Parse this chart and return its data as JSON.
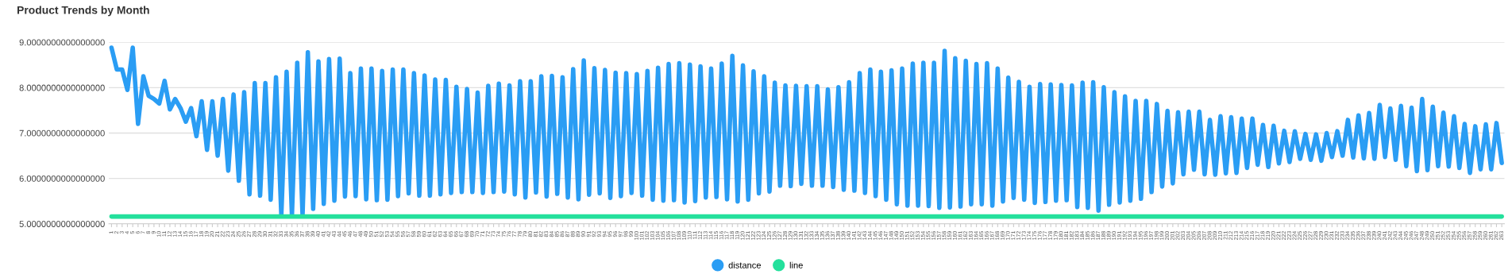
{
  "chart_data": {
    "type": "line",
    "title": "Product Trends by Month",
    "categories": [
      "1",
      "2",
      "3",
      "4",
      "5",
      "6",
      "7",
      "8",
      "9",
      "10",
      "11",
      "12",
      "13",
      "14",
      "15",
      "16",
      "17",
      "18",
      "19",
      "20",
      "21",
      "22",
      "23",
      "24",
      "25",
      "26",
      "27",
      "28",
      "29",
      "30",
      "31",
      "32",
      "33",
      "34",
      "35",
      "36",
      "37",
      "38",
      "39",
      "40",
      "41",
      "42",
      "43",
      "44",
      "45",
      "46",
      "47",
      "48",
      "49",
      "50",
      "51",
      "52",
      "53",
      "54",
      "55",
      "56",
      "57",
      "58",
      "59",
      "60",
      "61",
      "62",
      "63",
      "64",
      "65",
      "66",
      "67",
      "68",
      "69",
      "70",
      "71",
      "72",
      "73",
      "74",
      "75",
      "76",
      "77",
      "78",
      "79",
      "80",
      "81",
      "82",
      "83",
      "84",
      "85",
      "86",
      "87",
      "88",
      "89",
      "90",
      "91",
      "92",
      "93",
      "94",
      "95",
      "96",
      "97",
      "98",
      "99",
      "100",
      "101",
      "102",
      "103",
      "104",
      "105",
      "106",
      "107",
      "108",
      "109",
      "110",
      "111",
      "112",
      "113",
      "114",
      "115",
      "116",
      "117",
      "118",
      "119",
      "120",
      "121",
      "122",
      "123",
      "124",
      "125",
      "126",
      "127",
      "128",
      "129",
      "130",
      "131",
      "132",
      "133",
      "134",
      "135",
      "136",
      "137",
      "138",
      "139",
      "140",
      "141",
      "142",
      "143",
      "144",
      "145",
      "146",
      "147",
      "148",
      "149",
      "150",
      "151",
      "152",
      "153",
      "154",
      "155",
      "156",
      "157",
      "158",
      "159",
      "160",
      "161",
      "162",
      "163",
      "164",
      "165",
      "166",
      "167",
      "168",
      "169",
      "170",
      "171",
      "172",
      "173",
      "174",
      "175",
      "176",
      "177",
      "178",
      "179",
      "180",
      "181",
      "182",
      "183",
      "184",
      "185",
      "186",
      "187",
      "188",
      "189",
      "190",
      "191",
      "192",
      "193",
      "194",
      "195",
      "196",
      "197",
      "198",
      "199",
      "200",
      "201",
      "202",
      "203",
      "204",
      "205",
      "206",
      "207",
      "208",
      "209",
      "210",
      "211",
      "212",
      "213",
      "214",
      "215",
      "216",
      "217",
      "218",
      "219",
      "220",
      "221",
      "222",
      "223",
      "224",
      "225",
      "226",
      "227",
      "228",
      "229",
      "230",
      "231",
      "232",
      "233",
      "234",
      "235",
      "236",
      "237",
      "238",
      "239",
      "240",
      "241",
      "242",
      "243",
      "244",
      "245",
      "246",
      "247",
      "248",
      "249",
      "250",
      "251",
      "252",
      "253",
      "254",
      "255",
      "256",
      "257",
      "258",
      "259",
      "260",
      "261",
      "262",
      "263"
    ],
    "series": [
      {
        "name": "distance",
        "color": "#2a9df4",
        "values": [
          8.88,
          8.4,
          8.4,
          7.95,
          8.88,
          7.2,
          8.25,
          7.82,
          7.75,
          7.65,
          8.15,
          7.52,
          7.75,
          7.55,
          7.25,
          7.55,
          6.93,
          7.7,
          6.63,
          7.7,
          6.5,
          7.75,
          6.17,
          7.85,
          5.95,
          7.9,
          5.65,
          8.1,
          5.62,
          8.1,
          5.53,
          8.23,
          5.18,
          8.35,
          5.18,
          8.55,
          5.18,
          8.78,
          5.33,
          8.58,
          5.44,
          8.63,
          5.51,
          8.64,
          5.6,
          8.32,
          5.61,
          8.42,
          5.54,
          8.42,
          5.52,
          8.37,
          5.53,
          8.4,
          5.61,
          8.4,
          5.67,
          8.32,
          5.62,
          8.27,
          5.62,
          8.18,
          5.65,
          8.17,
          5.68,
          8.02,
          5.7,
          7.97,
          5.7,
          7.89,
          5.68,
          8.04,
          5.7,
          8.09,
          5.71,
          8.05,
          5.65,
          8.14,
          5.58,
          8.14,
          5.69,
          8.25,
          5.6,
          8.26,
          5.66,
          8.23,
          5.58,
          8.41,
          5.54,
          8.6,
          5.64,
          8.43,
          5.67,
          8.39,
          5.57,
          8.33,
          5.61,
          8.32,
          5.68,
          8.3,
          5.62,
          8.37,
          5.53,
          8.44,
          5.51,
          8.52,
          5.52,
          8.54,
          5.47,
          8.51,
          5.5,
          8.47,
          5.58,
          8.42,
          5.59,
          8.53,
          5.54,
          8.7,
          5.49,
          8.49,
          5.53,
          8.36,
          5.67,
          8.25,
          5.71,
          8.11,
          5.84,
          8.05,
          5.83,
          8.04,
          5.88,
          8.03,
          5.84,
          8.03,
          5.84,
          7.96,
          5.81,
          8.01,
          5.75,
          8.12,
          5.73,
          8.32,
          5.68,
          8.4,
          5.61,
          8.35,
          5.53,
          8.38,
          5.43,
          8.42,
          5.4,
          8.53,
          5.4,
          8.55,
          5.39,
          8.55,
          5.35,
          8.81,
          5.36,
          8.65,
          5.38,
          8.59,
          5.43,
          8.52,
          5.43,
          8.54,
          5.4,
          8.42,
          5.49,
          8.22,
          5.57,
          8.13,
          5.53,
          8.02,
          5.46,
          8.08,
          5.48,
          8.07,
          5.51,
          8.06,
          5.52,
          8.05,
          5.37,
          8.11,
          5.35,
          8.12,
          5.29,
          8.01,
          5.42,
          7.9,
          5.47,
          7.81,
          5.51,
          7.71,
          5.55,
          7.71,
          5.7,
          7.64,
          5.82,
          7.49,
          5.89,
          7.46,
          6.09,
          7.47,
          6.19,
          7.47,
          6.09,
          7.29,
          6.08,
          7.37,
          6.11,
          7.35,
          6.12,
          7.32,
          6.23,
          7.32,
          6.3,
          7.18,
          6.25,
          7.16,
          6.33,
          7.05,
          6.36,
          7.04,
          6.43,
          6.98,
          6.41,
          6.97,
          6.39,
          7.0,
          6.47,
          7.04,
          6.5,
          7.29,
          6.46,
          7.39,
          6.44,
          7.44,
          6.43,
          7.62,
          6.47,
          7.54,
          6.41,
          7.6,
          6.27,
          7.56,
          6.16,
          7.75,
          6.18,
          7.58,
          6.27,
          7.45,
          6.26,
          7.37,
          6.23,
          7.2,
          6.12,
          7.15,
          6.2,
          7.19,
          6.2,
          7.22,
          6.34
        ]
      },
      {
        "name": "line",
        "color": "#24e09c",
        "values": [
          5.16,
          5.16,
          5.16,
          5.16,
          5.16,
          5.16,
          5.16,
          5.16,
          5.16,
          5.16,
          5.16,
          5.16,
          5.16,
          5.16,
          5.16,
          5.16,
          5.16,
          5.16,
          5.16,
          5.16,
          5.16,
          5.16,
          5.16,
          5.16,
          5.16,
          5.16,
          5.16,
          5.16,
          5.16,
          5.16,
          5.16,
          5.16,
          5.16,
          5.16,
          5.16,
          5.16,
          5.16,
          5.16,
          5.16,
          5.16,
          5.16,
          5.16,
          5.16,
          5.16,
          5.16,
          5.16,
          5.16,
          5.16,
          5.16,
          5.16,
          5.16,
          5.16,
          5.16,
          5.16,
          5.16,
          5.16,
          5.16,
          5.16,
          5.16,
          5.16,
          5.16,
          5.16,
          5.16,
          5.16,
          5.16,
          5.16,
          5.16,
          5.16,
          5.16,
          5.16,
          5.16,
          5.16,
          5.16,
          5.16,
          5.16,
          5.16,
          5.16,
          5.16,
          5.16,
          5.16,
          5.16,
          5.16,
          5.16,
          5.16,
          5.16,
          5.16,
          5.16,
          5.16,
          5.16,
          5.16,
          5.16,
          5.16,
          5.16,
          5.16,
          5.16,
          5.16,
          5.16,
          5.16,
          5.16,
          5.16,
          5.16,
          5.16,
          5.16,
          5.16,
          5.16,
          5.16,
          5.16,
          5.16,
          5.16,
          5.16,
          5.16,
          5.16,
          5.16,
          5.16,
          5.16,
          5.16,
          5.16,
          5.16,
          5.16,
          5.16,
          5.16,
          5.16,
          5.16,
          5.16,
          5.16,
          5.16,
          5.16,
          5.16,
          5.16,
          5.16,
          5.16,
          5.16,
          5.16,
          5.16,
          5.16,
          5.16,
          5.16,
          5.16,
          5.16,
          5.16,
          5.16,
          5.16,
          5.16,
          5.16,
          5.16,
          5.16,
          5.16,
          5.16,
          5.16,
          5.16,
          5.16,
          5.16,
          5.16,
          5.16,
          5.16,
          5.16,
          5.16,
          5.16,
          5.16,
          5.16,
          5.16,
          5.16,
          5.16,
          5.16,
          5.16,
          5.16,
          5.16,
          5.16,
          5.16,
          5.16,
          5.16,
          5.16,
          5.16,
          5.16,
          5.16,
          5.16,
          5.16,
          5.16,
          5.16,
          5.16,
          5.16,
          5.16,
          5.16,
          5.16,
          5.16,
          5.16,
          5.16,
          5.16,
          5.16,
          5.16,
          5.16,
          5.16,
          5.16,
          5.16,
          5.16,
          5.16,
          5.16,
          5.16,
          5.16,
          5.16,
          5.16,
          5.16,
          5.16,
          5.16,
          5.16,
          5.16,
          5.16,
          5.16,
          5.16,
          5.16,
          5.16,
          5.16,
          5.16,
          5.16,
          5.16,
          5.16,
          5.16,
          5.16,
          5.16,
          5.16,
          5.16,
          5.16,
          5.16,
          5.16,
          5.16,
          5.16,
          5.16,
          5.16,
          5.16,
          5.16,
          5.16,
          5.16,
          5.16,
          5.16,
          5.16,
          5.16,
          5.16,
          5.16,
          5.16,
          5.16,
          5.16,
          5.16,
          5.16,
          5.16,
          5.16,
          5.16,
          5.16,
          5.16,
          5.16,
          5.16,
          5.16,
          5.16,
          5.16,
          5.16,
          5.16,
          5.16,
          5.16,
          5.16,
          5.16,
          5.16,
          5.16,
          5.16,
          5.16
        ]
      }
    ],
    "ylim": [
      5,
      9
    ],
    "yticks": [
      {
        "value": 5,
        "label": "5.0000000000000000"
      },
      {
        "value": 6,
        "label": "6.0000000000000000"
      },
      {
        "value": 7,
        "label": "7.0000000000000000"
      },
      {
        "value": 8,
        "label": "8.0000000000000000"
      },
      {
        "value": 9,
        "label": "9.0000000000000000"
      }
    ],
    "grid": "y",
    "legend": "bottom",
    "marker": "none",
    "line_style": "solid"
  }
}
